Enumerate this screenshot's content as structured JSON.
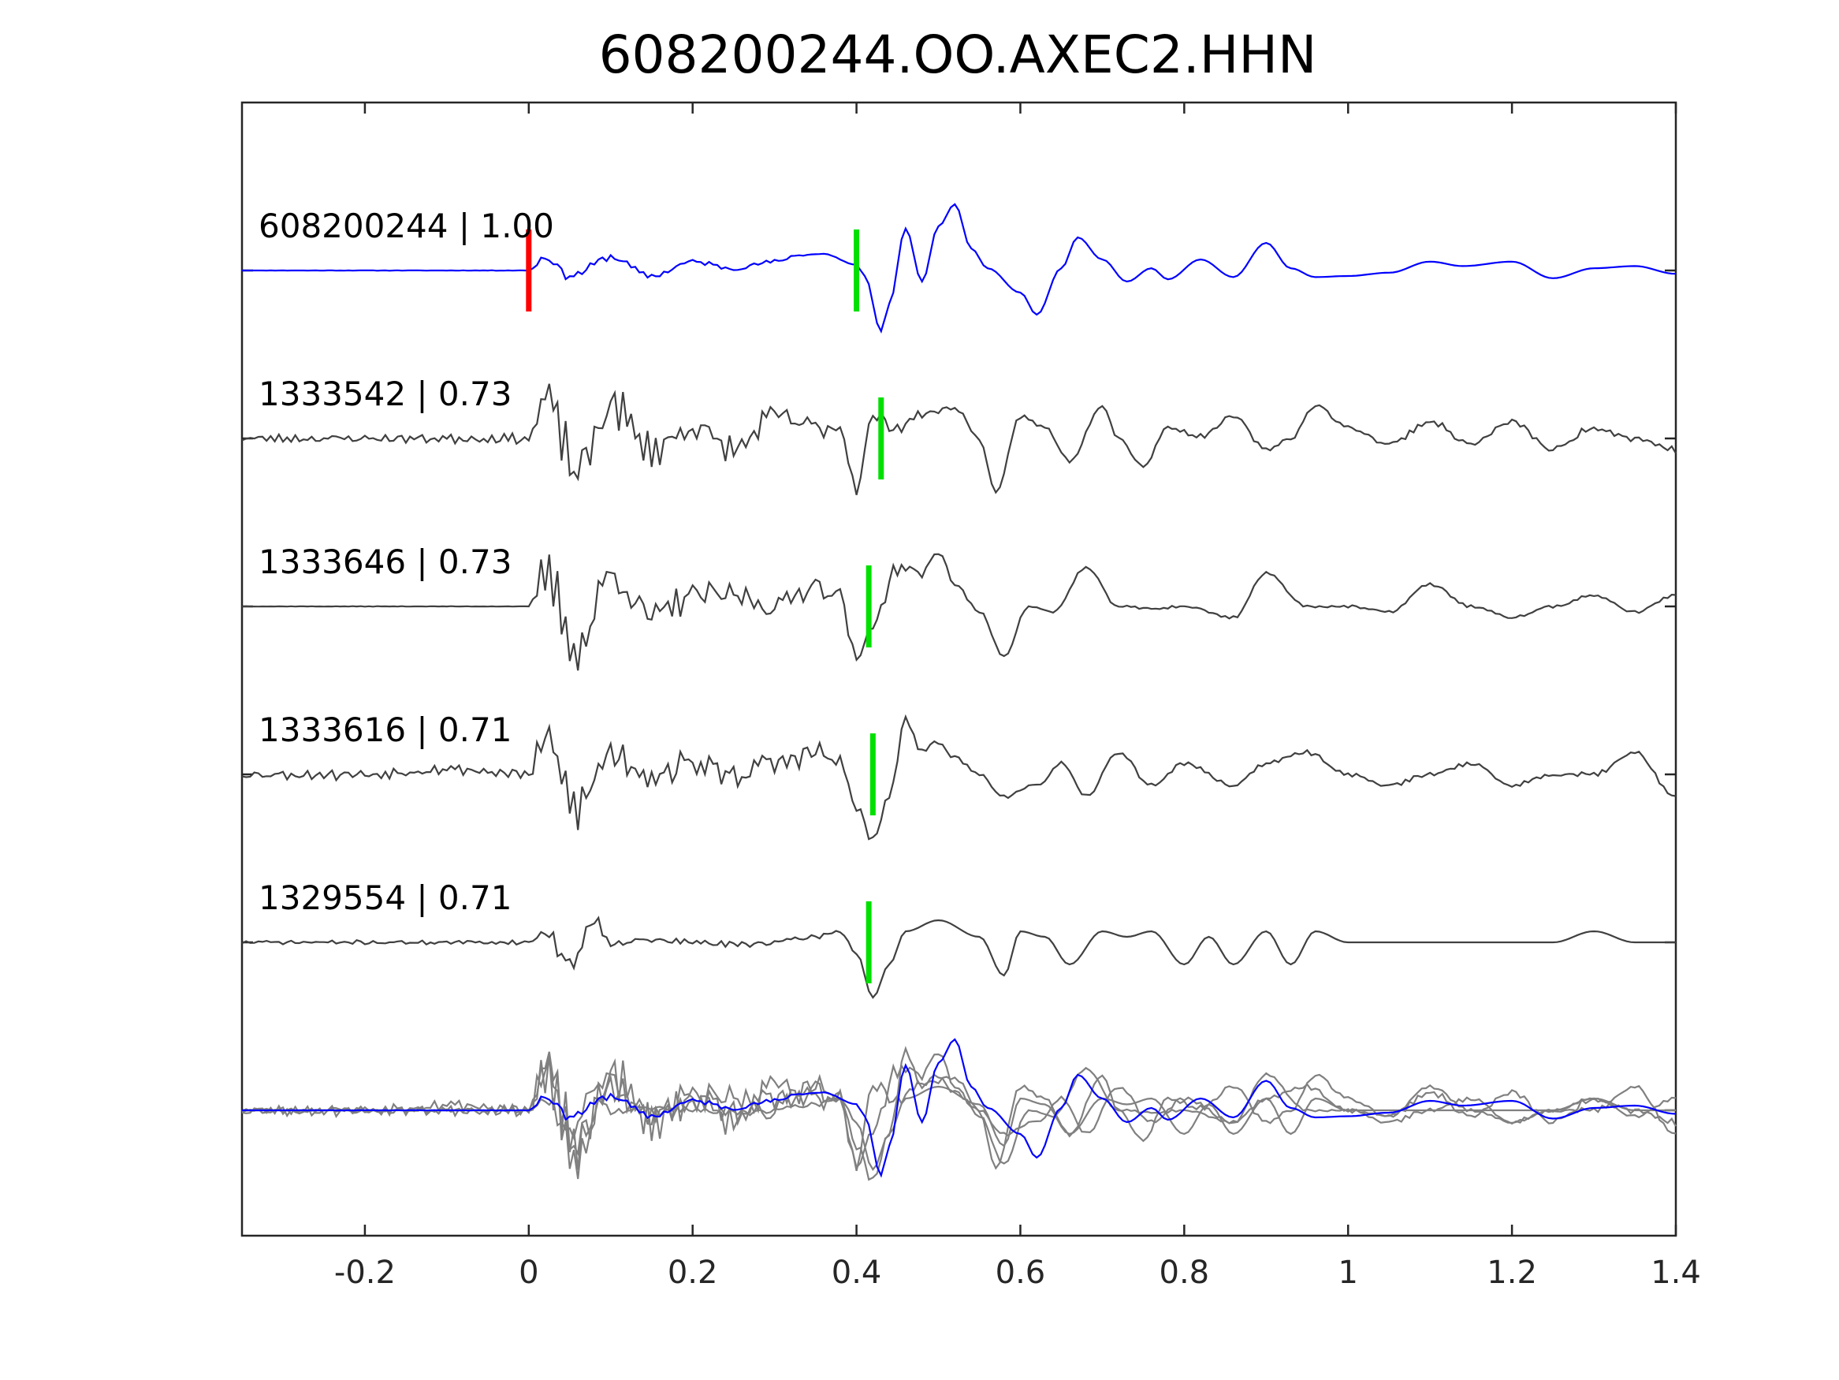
{
  "chart_data": {
    "type": "line",
    "title": "608200244.OO.AXEC2.HHN",
    "xlabel": "",
    "ylabel": "",
    "xlim": [
      -0.35,
      1.4
    ],
    "xticks": [
      -0.2,
      0,
      0.2,
      0.4,
      0.6,
      0.8,
      1,
      1.2,
      1.4
    ],
    "xtick_labels": [
      "-0.2",
      "0",
      "0.2",
      "0.4",
      "0.6",
      "0.8",
      "1",
      "1.2",
      "1.4"
    ],
    "grid": false,
    "legend": "none",
    "colors": {
      "template": "#0000ff",
      "match": "#404040",
      "overlay": "#808080",
      "origin_pick": "#ff0000",
      "arrival_pick": "#00e000"
    },
    "origin_pick_time": 0.0,
    "series": [
      {
        "label": "608200244 | 1.00",
        "kind": "template",
        "arrival_pick": 0.4,
        "seed": 11,
        "x": [
          -0.35,
          -0.3,
          -0.2,
          -0.1,
          0.0,
          0.02,
          0.05,
          0.1,
          0.15,
          0.2,
          0.25,
          0.3,
          0.33,
          0.36,
          0.4,
          0.41,
          0.43,
          0.44,
          0.46,
          0.48,
          0.5,
          0.52,
          0.54,
          0.56,
          0.6,
          0.62,
          0.65,
          0.67,
          0.7,
          0.73,
          0.76,
          0.78,
          0.82,
          0.86,
          0.9,
          0.93,
          0.96,
          1.0,
          1.05,
          1.1,
          1.14,
          1.2,
          1.25,
          1.3,
          1.35,
          1.4
        ],
        "y": [
          0.0,
          0.0,
          0.0,
          0.0,
          0.0,
          0.12,
          -0.05,
          0.12,
          -0.05,
          0.08,
          0.02,
          0.08,
          0.14,
          0.15,
          0.05,
          -0.05,
          -0.55,
          -0.3,
          0.38,
          -0.1,
          0.4,
          0.6,
          0.2,
          0.02,
          -0.2,
          -0.4,
          0.02,
          0.3,
          0.1,
          -0.1,
          0.02,
          -0.08,
          0.1,
          -0.06,
          0.25,
          0.02,
          -0.06,
          -0.05,
          -0.02,
          0.08,
          0.04,
          0.08,
          -0.07,
          0.02,
          0.04,
          -0.03
        ],
        "noise": [
          0.0,
          0.002,
          0.003,
          0.003,
          0.004,
          0.06,
          0.06,
          0.05,
          0.04,
          0.04,
          0.04,
          0.03,
          0.02,
          0.01,
          0.01,
          0.0,
          0.0,
          0.0,
          0.0,
          0.0,
          0.0,
          0.0,
          0.0,
          0.0,
          0.0,
          0.0,
          0.0,
          0.0,
          0.0,
          0.0,
          0.0,
          0.0,
          0.0,
          0.0,
          0.0,
          0.0,
          0.0,
          0.0,
          0.0,
          0.0,
          0.0,
          0.0,
          0.0,
          0.0,
          0.0,
          0.0
        ]
      },
      {
        "label": "1333542 | 0.73",
        "kind": "match",
        "arrival_pick": 0.43,
        "seed": 23,
        "x": [
          -0.35,
          -0.2,
          -0.1,
          0.0,
          0.02,
          0.06,
          0.1,
          0.15,
          0.2,
          0.25,
          0.3,
          0.35,
          0.38,
          0.4,
          0.42,
          0.45,
          0.48,
          0.52,
          0.55,
          0.57,
          0.6,
          0.63,
          0.66,
          0.7,
          0.72,
          0.75,
          0.78,
          0.82,
          0.86,
          0.9,
          0.93,
          0.96,
          1.0,
          1.05,
          1.1,
          1.15,
          1.2,
          1.25,
          1.3,
          1.35,
          1.4
        ],
        "y": [
          0.0,
          0.0,
          0.0,
          0.0,
          0.35,
          -0.3,
          0.3,
          -0.1,
          0.1,
          -0.1,
          0.2,
          0.1,
          0.1,
          -0.45,
          0.2,
          0.1,
          0.22,
          0.28,
          0.0,
          -0.5,
          0.2,
          0.1,
          -0.2,
          0.3,
          0.0,
          -0.25,
          0.1,
          0.02,
          0.2,
          -0.1,
          0.0,
          0.3,
          0.1,
          -0.05,
          0.15,
          -0.05,
          0.15,
          -0.1,
          0.1,
          0.0,
          -0.1
        ],
        "noise": [
          0.06,
          0.06,
          0.07,
          0.07,
          0.35,
          0.35,
          0.3,
          0.25,
          0.2,
          0.2,
          0.2,
          0.2,
          0.15,
          0.1,
          0.1,
          0.1,
          0.05,
          0.04,
          0.03,
          0.03,
          0.03,
          0.03,
          0.03,
          0.03,
          0.03,
          0.03,
          0.03,
          0.03,
          0.03,
          0.03,
          0.03,
          0.03,
          0.03,
          0.04,
          0.04,
          0.04,
          0.04,
          0.05,
          0.05,
          0.05,
          0.05
        ]
      },
      {
        "label": "1333646 | 0.73",
        "kind": "match",
        "arrival_pick": 0.415,
        "seed": 37,
        "x": [
          -0.35,
          -0.1,
          -0.01,
          0.0,
          0.02,
          0.06,
          0.1,
          0.15,
          0.2,
          0.25,
          0.3,
          0.35,
          0.38,
          0.4,
          0.42,
          0.45,
          0.48,
          0.5,
          0.52,
          0.55,
          0.58,
          0.61,
          0.64,
          0.68,
          0.72,
          0.76,
          0.8,
          0.86,
          0.9,
          0.95,
          1.0,
          1.05,
          1.1,
          1.15,
          1.2,
          1.25,
          1.3,
          1.35,
          1.4
        ],
        "y": [
          0.0,
          0.0,
          0.0,
          0.0,
          0.3,
          -0.4,
          0.3,
          -0.1,
          0.1,
          0.1,
          0.0,
          0.2,
          0.1,
          -0.5,
          -0.15,
          0.35,
          0.3,
          0.5,
          0.2,
          -0.05,
          -0.45,
          0.0,
          -0.05,
          0.35,
          0.0,
          -0.02,
          0.0,
          -0.1,
          0.3,
          0.0,
          0.0,
          -0.05,
          0.2,
          0.0,
          -0.1,
          0.0,
          0.1,
          -0.05,
          0.1
        ],
        "noise": [
          0.003,
          0.003,
          0.003,
          0.0,
          0.35,
          0.35,
          0.3,
          0.25,
          0.2,
          0.2,
          0.2,
          0.2,
          0.15,
          0.1,
          0.1,
          0.1,
          0.08,
          0.05,
          0.03,
          0.02,
          0.02,
          0.02,
          0.02,
          0.02,
          0.02,
          0.02,
          0.02,
          0.02,
          0.02,
          0.02,
          0.02,
          0.02,
          0.02,
          0.02,
          0.02,
          0.02,
          0.02,
          0.02,
          0.02
        ]
      },
      {
        "label": "1333616 | 0.71",
        "kind": "match",
        "arrival_pick": 0.42,
        "seed": 53,
        "x": [
          -0.35,
          -0.2,
          -0.1,
          0.0,
          0.02,
          0.06,
          0.1,
          0.15,
          0.2,
          0.25,
          0.3,
          0.35,
          0.38,
          0.4,
          0.42,
          0.44,
          0.46,
          0.48,
          0.5,
          0.52,
          0.55,
          0.58,
          0.62,
          0.65,
          0.68,
          0.72,
          0.76,
          0.8,
          0.86,
          0.9,
          0.95,
          1.0,
          1.05,
          1.1,
          1.15,
          1.2,
          1.25,
          1.3,
          1.35,
          1.4
        ],
        "y": [
          0.0,
          0.0,
          0.05,
          0.0,
          0.3,
          -0.3,
          0.2,
          0.0,
          0.1,
          0.0,
          0.1,
          0.2,
          0.1,
          -0.3,
          -0.6,
          -0.2,
          0.5,
          0.2,
          0.3,
          0.15,
          0.0,
          -0.2,
          -0.1,
          0.1,
          -0.2,
          0.2,
          -0.1,
          0.1,
          -0.1,
          0.1,
          0.2,
          0.0,
          -0.1,
          0.0,
          0.1,
          -0.1,
          0.0,
          0.0,
          0.2,
          -0.2
        ],
        "noise": [
          0.07,
          0.08,
          0.08,
          0.08,
          0.35,
          0.35,
          0.3,
          0.25,
          0.2,
          0.2,
          0.2,
          0.2,
          0.15,
          0.1,
          0.05,
          0.05,
          0.05,
          0.04,
          0.04,
          0.04,
          0.03,
          0.03,
          0.03,
          0.03,
          0.03,
          0.03,
          0.03,
          0.03,
          0.03,
          0.03,
          0.03,
          0.03,
          0.03,
          0.03,
          0.03,
          0.03,
          0.03,
          0.03,
          0.03,
          0.03
        ]
      },
      {
        "label": "1329554 | 0.71",
        "kind": "match",
        "arrival_pick": 0.415,
        "seed": 71,
        "x": [
          -0.35,
          -0.2,
          -0.1,
          0.0,
          0.02,
          0.05,
          0.08,
          0.1,
          0.15,
          0.2,
          0.25,
          0.3,
          0.35,
          0.38,
          0.4,
          0.42,
          0.44,
          0.46,
          0.5,
          0.55,
          0.58,
          0.6,
          0.63,
          0.66,
          0.7,
          0.73,
          0.76,
          0.8,
          0.83,
          0.86,
          0.9,
          0.93,
          0.96,
          1.0,
          1.05,
          1.1,
          1.15,
          1.2,
          1.25,
          1.3,
          1.35,
          1.4
        ],
        "y": [
          0.0,
          0.0,
          0.0,
          0.0,
          0.1,
          -0.2,
          0.2,
          0.0,
          0.02,
          0.0,
          -0.02,
          0.0,
          0.05,
          0.1,
          -0.1,
          -0.5,
          -0.2,
          0.1,
          0.2,
          0.05,
          -0.3,
          0.1,
          0.05,
          -0.2,
          0.1,
          0.05,
          0.1,
          -0.2,
          0.05,
          -0.2,
          0.1,
          -0.2,
          0.1,
          0.0,
          0.0,
          0.0,
          0.0,
          0.0,
          0.0,
          0.1,
          0.0,
          0.0
        ],
        "noise": [
          0.03,
          0.03,
          0.03,
          0.03,
          0.1,
          0.1,
          0.1,
          0.06,
          0.05,
          0.05,
          0.05,
          0.05,
          0.04,
          0.03,
          0.02,
          0.0,
          0.0,
          0.0,
          0.0,
          0.0,
          0.0,
          0.0,
          0.0,
          0.0,
          0.0,
          0.0,
          0.0,
          0.0,
          0.0,
          0.0,
          0.0,
          0.0,
          0.0,
          0.0,
          0.0,
          0.0,
          0.0,
          0.0,
          0.0,
          0.0,
          0.0,
          0.0
        ]
      }
    ]
  }
}
